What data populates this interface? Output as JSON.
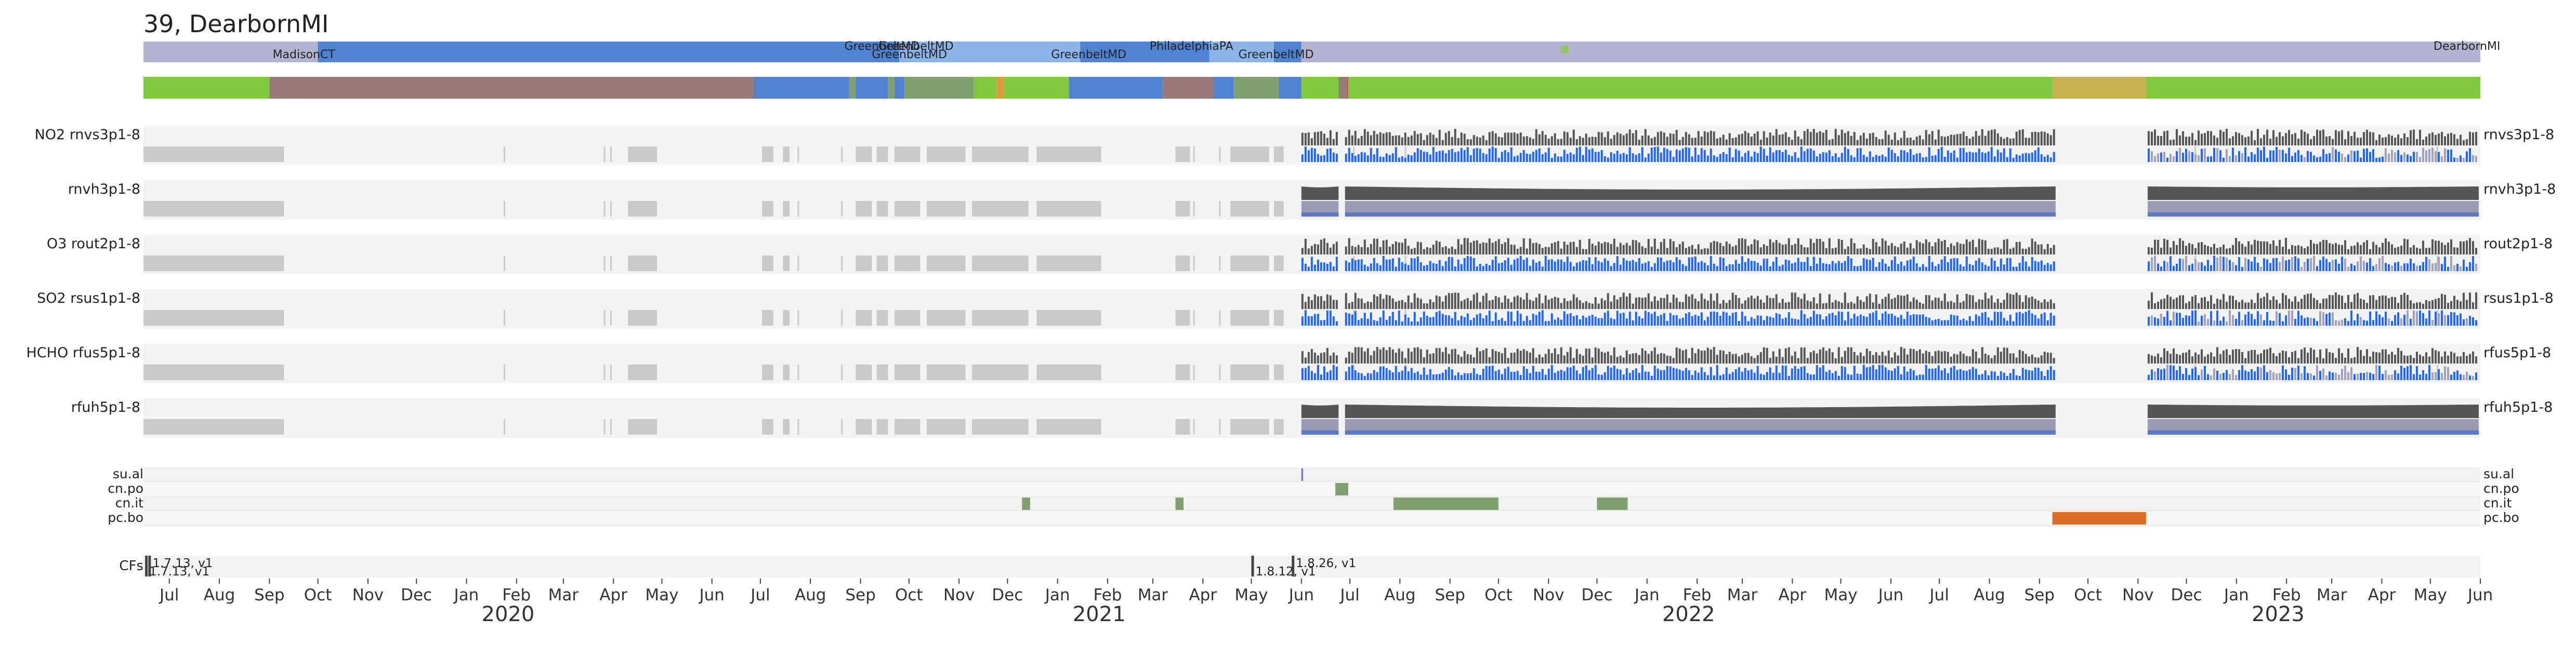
{
  "chart_data": {
    "type": "timeline",
    "title": "39, DearbornMI",
    "x_start": "2019-06-15",
    "x_end": "2023-06-01",
    "locations": {
      "labels": [
        {
          "text": "MadisonCT",
          "date": "2019-09-03",
          "row": 1
        },
        {
          "text": "GreenbeltMD",
          "date": "2020-08-22",
          "row": 0
        },
        {
          "text": "GreenbeltMD",
          "date": "2020-09-12",
          "row": 0
        },
        {
          "text": "GreenbeltMD",
          "date": "2020-09-08",
          "row": 1
        },
        {
          "text": "GreenbeltMD",
          "date": "2020-12-28",
          "row": 1
        },
        {
          "text": "PhiladelphiaPA",
          "date": "2021-02-27",
          "row": 0
        },
        {
          "text": "GreenbeltMD",
          "date": "2021-04-23",
          "row": 1
        },
        {
          "text": "DearbornMI",
          "date": "2023-05-03",
          "row": 0
        }
      ],
      "segments": [
        {
          "start": "2019-06-15",
          "end": "2019-10-01",
          "color": "#b4b4d2"
        },
        {
          "start": "2019-10-01",
          "end": "2020-09-25",
          "color": "#5082d2"
        },
        {
          "start": "2020-09-25",
          "end": "2020-10-10",
          "color": "#8cb4eb"
        },
        {
          "start": "2020-10-10",
          "end": "2021-01-15",
          "color": "#8cb4eb"
        },
        {
          "start": "2021-01-15",
          "end": "2021-04-05",
          "color": "#5082d2"
        },
        {
          "start": "2021-04-05",
          "end": "2021-05-15",
          "color": "#8cb4eb"
        },
        {
          "start": "2021-05-15",
          "end": "2021-06-01",
          "color": "#5082d2"
        },
        {
          "start": "2021-06-01",
          "end": "2023-06-01",
          "color": "#b4b4d2"
        }
      ],
      "marker": {
        "date": "2021-11-11",
        "color": "#90c860"
      }
    },
    "status_bar": [
      {
        "start": "2019-06-15",
        "end": "2019-09-01",
        "color": "#80c840"
      },
      {
        "start": "2019-09-01",
        "end": "2020-06-27",
        "color": "#987b78"
      },
      {
        "start": "2020-06-27",
        "end": "2020-08-25",
        "color": "#5082d2"
      },
      {
        "start": "2020-08-25",
        "end": "2020-08-29",
        "color": "#80a070"
      },
      {
        "start": "2020-08-29",
        "end": "2020-09-18",
        "color": "#5082d2"
      },
      {
        "start": "2020-09-18",
        "end": "2020-09-22",
        "color": "#80a070"
      },
      {
        "start": "2020-09-22",
        "end": "2020-09-28",
        "color": "#5082d2"
      },
      {
        "start": "2020-09-28",
        "end": "2020-11-10",
        "color": "#80a070"
      },
      {
        "start": "2020-11-10",
        "end": "2020-11-24",
        "color": "#80c840"
      },
      {
        "start": "2020-11-24",
        "end": "2020-11-29",
        "color": "#d8a040"
      },
      {
        "start": "2020-11-29",
        "end": "2021-01-08",
        "color": "#80c840"
      },
      {
        "start": "2021-01-08",
        "end": "2021-03-07",
        "color": "#5082d2"
      },
      {
        "start": "2021-03-07",
        "end": "2021-04-08",
        "color": "#987b78"
      },
      {
        "start": "2021-04-08",
        "end": "2021-04-20",
        "color": "#5082d2"
      },
      {
        "start": "2021-04-20",
        "end": "2021-05-18",
        "color": "#80a070"
      },
      {
        "start": "2021-05-18",
        "end": "2021-06-01",
        "color": "#5082d2"
      },
      {
        "start": "2021-06-01",
        "end": "2021-06-24",
        "color": "#80c840"
      },
      {
        "start": "2021-06-24",
        "end": "2021-06-29",
        "color": "#987b78"
      },
      {
        "start": "2021-06-29",
        "end": "2021-06-30",
        "color": "#d05050"
      },
      {
        "start": "2021-06-30",
        "end": "2022-09-09",
        "color": "#80c840"
      },
      {
        "start": "2022-09-09",
        "end": "2022-11-06",
        "color": "#c8b050"
      },
      {
        "start": "2022-11-06",
        "end": "2023-06-01",
        "color": "#80c840"
      }
    ],
    "data_rows": [
      {
        "left_label": "NO2  rnvs3p1-8",
        "right_label": "rnvs3p1-8",
        "kind": "variable"
      },
      {
        "left_label": "rnvh3p1-8",
        "right_label": "rnvh3p1-8",
        "kind": "smooth"
      },
      {
        "left_label": "O3  rout2p1-8",
        "right_label": "rout2p1-8",
        "kind": "variable"
      },
      {
        "left_label": "SO2  rsus1p1-8",
        "right_label": "rsus1p1-8",
        "kind": "variable"
      },
      {
        "left_label": "HCHO  rfus5p1-8",
        "right_label": "rfus5p1-8",
        "kind": "variable"
      },
      {
        "left_label": "rfuh5p1-8",
        "right_label": "rfuh5p1-8",
        "kind": "smooth"
      }
    ],
    "data_periods": {
      "sparse_blocks": [
        [
          "2019-06-15",
          "2019-09-10"
        ],
        [
          "2020-04-10",
          "2020-04-28"
        ],
        [
          "2020-07-02",
          "2020-07-09"
        ],
        [
          "2020-07-15",
          "2020-07-19"
        ],
        [
          "2020-08-29",
          "2020-09-08"
        ],
        [
          "2020-09-11",
          "2020-09-18"
        ],
        [
          "2020-09-22",
          "2020-10-08"
        ],
        [
          "2020-10-12",
          "2020-11-05"
        ],
        [
          "2020-11-09",
          "2020-12-14"
        ],
        [
          "2020-12-19",
          "2021-01-28"
        ],
        [
          "2021-03-15",
          "2021-03-24"
        ],
        [
          "2021-04-18",
          "2021-05-12"
        ],
        [
          "2021-05-15",
          "2021-05-21"
        ]
      ],
      "sparse_thin": [
        "2020-01-24",
        "2020-03-26",
        "2020-03-30",
        "2020-07-24",
        "2020-08-20",
        "2021-03-26",
        "2021-04-11",
        "2021-07-03",
        "2021-08-04",
        "2022-12-06",
        "2023-05-05"
      ],
      "active_periods": [
        [
          "2021-06-01",
          "2021-06-24"
        ],
        [
          "2021-06-28",
          "2022-09-11"
        ],
        [
          "2022-11-07",
          "2023-05-31"
        ]
      ]
    },
    "event_rows": [
      {
        "label": "su.al",
        "events": [
          {
            "start": "2021-06-01",
            "end": "2021-06-02",
            "color": "#7070c0"
          }
        ]
      },
      {
        "label": "cn.po",
        "events": [
          {
            "start": "2021-06-22",
            "end": "2021-06-30",
            "color": "#80a070"
          }
        ]
      },
      {
        "label": "cn.it",
        "events": [
          {
            "start": "2020-12-10",
            "end": "2020-12-15",
            "color": "#80a070"
          },
          {
            "start": "2021-03-15",
            "end": "2021-03-20",
            "color": "#80a070"
          },
          {
            "start": "2021-07-28",
            "end": "2021-10-01",
            "color": "#80a070"
          },
          {
            "start": "2021-12-01",
            "end": "2021-12-20",
            "color": "#80a070"
          }
        ]
      },
      {
        "label": "pc.bo",
        "events": [
          {
            "start": "2022-09-09",
            "end": "2022-11-06",
            "color": "#e06a20"
          }
        ]
      }
    ],
    "cfs": {
      "label": "CFs",
      "entries": [
        {
          "date": "2019-06-18",
          "text": "1.7.13, v1",
          "row": 0
        },
        {
          "date": "2019-06-16",
          "text": "1.7.13, v1",
          "row": 1
        },
        {
          "date": "2021-05-01",
          "text": "1.8.12, v1",
          "row": 1
        },
        {
          "date": "2021-05-26",
          "text": "1.8.26, v1",
          "row": 0
        }
      ]
    },
    "x_axis": {
      "month_ticks": [
        {
          "date": "2019-07-01",
          "label": "Jul"
        },
        {
          "date": "2019-08-01",
          "label": "Aug"
        },
        {
          "date": "2019-09-01",
          "label": "Sep"
        },
        {
          "date": "2019-10-01",
          "label": "Oct"
        },
        {
          "date": "2019-11-01",
          "label": "Nov"
        },
        {
          "date": "2019-12-01",
          "label": "Dec"
        },
        {
          "date": "2020-01-01",
          "label": "Jan"
        },
        {
          "date": "2020-02-01",
          "label": "Feb"
        },
        {
          "date": "2020-03-01",
          "label": "Mar"
        },
        {
          "date": "2020-04-01",
          "label": "Apr"
        },
        {
          "date": "2020-05-01",
          "label": "May"
        },
        {
          "date": "2020-06-01",
          "label": "Jun"
        },
        {
          "date": "2020-07-01",
          "label": "Jul"
        },
        {
          "date": "2020-08-01",
          "label": "Aug"
        },
        {
          "date": "2020-09-01",
          "label": "Sep"
        },
        {
          "date": "2020-10-01",
          "label": "Oct"
        },
        {
          "date": "2020-11-01",
          "label": "Nov"
        },
        {
          "date": "2020-12-01",
          "label": "Dec"
        },
        {
          "date": "2021-01-01",
          "label": "Jan"
        },
        {
          "date": "2021-02-01",
          "label": "Feb"
        },
        {
          "date": "2021-03-01",
          "label": "Mar"
        },
        {
          "date": "2021-04-01",
          "label": "Apr"
        },
        {
          "date": "2021-05-01",
          "label": "May"
        },
        {
          "date": "2021-06-01",
          "label": "Jun"
        },
        {
          "date": "2021-07-01",
          "label": "Jul"
        },
        {
          "date": "2021-08-01",
          "label": "Aug"
        },
        {
          "date": "2021-09-01",
          "label": "Sep"
        },
        {
          "date": "2021-10-01",
          "label": "Oct"
        },
        {
          "date": "2021-11-01",
          "label": "Nov"
        },
        {
          "date": "2021-12-01",
          "label": "Dec"
        },
        {
          "date": "2022-01-01",
          "label": "Jan"
        },
        {
          "date": "2022-02-01",
          "label": "Feb"
        },
        {
          "date": "2022-03-01",
          "label": "Mar"
        },
        {
          "date": "2022-04-01",
          "label": "Apr"
        },
        {
          "date": "2022-05-01",
          "label": "May"
        },
        {
          "date": "2022-06-01",
          "label": "Jun"
        },
        {
          "date": "2022-07-01",
          "label": "Jul"
        },
        {
          "date": "2022-08-01",
          "label": "Aug"
        },
        {
          "date": "2022-09-01",
          "label": "Sep"
        },
        {
          "date": "2022-10-01",
          "label": "Oct"
        },
        {
          "date": "2022-11-01",
          "label": "Nov"
        },
        {
          "date": "2022-12-01",
          "label": "Dec"
        },
        {
          "date": "2023-01-01",
          "label": "Jan"
        },
        {
          "date": "2023-02-01",
          "label": "Feb"
        },
        {
          "date": "2023-03-01",
          "label": "Mar"
        },
        {
          "date": "2023-04-01",
          "label": "Apr"
        },
        {
          "date": "2023-05-01",
          "label": "May"
        },
        {
          "date": "2023-06-01",
          "label": "Jun"
        }
      ],
      "year_labels": [
        {
          "date": "2020-01-01",
          "label": "2020"
        },
        {
          "date": "2021-01-01",
          "label": "2021"
        },
        {
          "date": "2022-01-01",
          "label": "2022"
        },
        {
          "date": "2023-01-01",
          "label": "2023"
        }
      ]
    },
    "colors": {
      "panel_bg": "#f3f3f3",
      "sparse_gray": "#cacaca",
      "bar_dark": "#555555",
      "bar_blue": "#2266ee",
      "smooth_band": "#9a9ab4"
    }
  }
}
